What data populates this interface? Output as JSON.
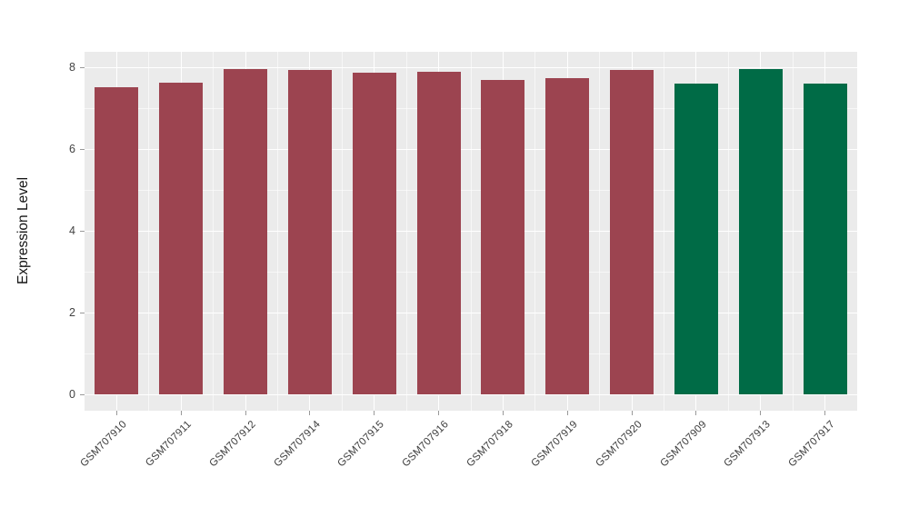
{
  "figure": {
    "background": "#FFFFFF"
  },
  "chart_data": {
    "type": "bar",
    "title": "",
    "xlabel": "",
    "ylabel": "Expression Level",
    "ylim": [
      0,
      8.4
    ],
    "y_major_ticks": [
      0,
      2,
      4,
      6,
      8
    ],
    "y_minor_ticks": [
      1,
      3,
      5,
      7
    ],
    "grid": "on",
    "legend": "none",
    "panel_background": "#EBEBEB",
    "gridline_color": "#FFFFFF",
    "axis_text_color": "#434343",
    "bar_colors_used": [
      "#9C4450",
      "#006B46"
    ],
    "categories": [
      "GSM707910",
      "GSM707911",
      "GSM707912",
      "GSM707914",
      "GSM707915",
      "GSM707916",
      "GSM707918",
      "GSM707919",
      "GSM707920",
      "GSM707909",
      "GSM707913",
      "GSM707917"
    ],
    "bars": [
      {
        "label": "GSM707910",
        "value": 7.51,
        "color": "#9C4450"
      },
      {
        "label": "GSM707911",
        "value": 7.62,
        "color": "#9C4450"
      },
      {
        "label": "GSM707912",
        "value": 7.96,
        "color": "#9C4450"
      },
      {
        "label": "GSM707914",
        "value": 7.93,
        "color": "#9C4450"
      },
      {
        "label": "GSM707915",
        "value": 7.86,
        "color": "#9C4450"
      },
      {
        "label": "GSM707916",
        "value": 7.88,
        "color": "#9C4450"
      },
      {
        "label": "GSM707918",
        "value": 7.7,
        "color": "#9C4450"
      },
      {
        "label": "GSM707919",
        "value": 7.74,
        "color": "#9C4450"
      },
      {
        "label": "GSM707920",
        "value": 7.93,
        "color": "#9C4450"
      },
      {
        "label": "GSM707909",
        "value": 7.61,
        "color": "#006B46"
      },
      {
        "label": "GSM707913",
        "value": 7.96,
        "color": "#006B46"
      },
      {
        "label": "GSM707917",
        "value": 7.59,
        "color": "#006B46"
      }
    ]
  }
}
